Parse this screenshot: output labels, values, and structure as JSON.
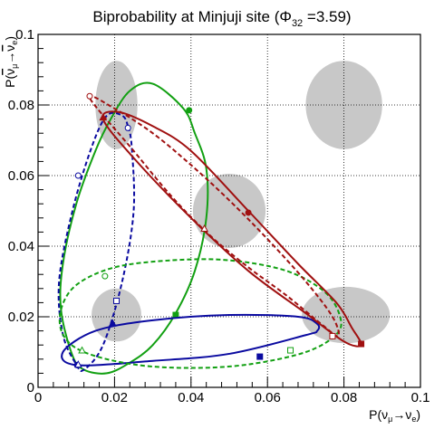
{
  "chart_data": {
    "type": "line",
    "title": {
      "prefix": "Biprobability at Minjuji site (",
      "symbol": "Φ",
      "subscript": "32",
      "suffix": " =3.59)"
    },
    "xlabel": {
      "base": "P(ν",
      "sub1": "μ",
      "arrow": "→ν",
      "sub2": "e",
      "close": ")"
    },
    "ylabel": {
      "base": "P(",
      "bar1": "ν",
      "sub1": "μ",
      "arrow": "→",
      "bar2": "ν",
      "sub2": "e",
      "close": ")"
    },
    "xlim": [
      0,
      0.1
    ],
    "ylim": [
      0,
      0.1
    ],
    "xticks": [
      "0",
      "0.02",
      "0.04",
      "0.06",
      "0.08",
      "0.1"
    ],
    "yticks": [
      "0",
      "0.02",
      "0.04",
      "0.06",
      "0.08",
      "0.1"
    ],
    "grid": true,
    "colors": {
      "green": "#12a012",
      "blue": "#0a0aa0",
      "red": "#a01010",
      "blob": "#c8c8c8"
    },
    "gray_regions": [
      {
        "cx": 0.0205,
        "cy": 0.08,
        "rx": 0.0055,
        "ry": 0.0125
      },
      {
        "cx": 0.08,
        "cy": 0.08,
        "rx": 0.01,
        "ry": 0.0125
      },
      {
        "cx": 0.05,
        "cy": 0.05,
        "rx": 0.0095,
        "ry": 0.0105
      },
      {
        "cx": 0.0205,
        "cy": 0.0205,
        "rx": 0.0065,
        "ry": 0.0075
      },
      {
        "cx": 0.0805,
        "cy": 0.0205,
        "rx": 0.0115,
        "ry": 0.008
      }
    ],
    "series": [
      {
        "color": "green",
        "dash": false,
        "points": [
          [
            0.038,
            0.079
          ],
          [
            0.03,
            0.086
          ],
          [
            0.024,
            0.084
          ],
          [
            0.019,
            0.076
          ],
          [
            0.015,
            0.067
          ],
          [
            0.01,
            0.052
          ],
          [
            0.0065,
            0.035
          ],
          [
            0.006,
            0.022
          ],
          [
            0.009,
            0.009
          ],
          [
            0.012,
            0.005
          ],
          [
            0.018,
            0.004
          ],
          [
            0.024,
            0.007
          ],
          [
            0.03,
            0.012
          ],
          [
            0.036,
            0.021
          ],
          [
            0.041,
            0.033
          ],
          [
            0.044,
            0.048
          ],
          [
            0.044,
            0.062
          ],
          [
            0.041,
            0.072
          ],
          [
            0.038,
            0.079
          ]
        ],
        "markers": [
          [
            0.0395,
            0.0785
          ],
          [
            0.036,
            0.0205
          ]
        ]
      },
      {
        "color": "blue",
        "dash": false,
        "points": [
          [
            0.0102,
            0.0063
          ],
          [
            0.03,
            0.0075
          ],
          [
            0.05,
            0.0095
          ],
          [
            0.07,
            0.0148
          ],
          [
            0.073,
            0.016
          ],
          [
            0.073,
            0.018
          ],
          [
            0.068,
            0.02
          ],
          [
            0.05,
            0.0205
          ],
          [
            0.03,
            0.019
          ],
          [
            0.015,
            0.016
          ],
          [
            0.0065,
            0.01
          ],
          [
            0.0102,
            0.0063
          ]
        ],
        "markers": [
          [
            0.0102,
            0.0063
          ],
          [
            0.058,
            0.0087
          ],
          [
            0.0195,
            0.0182
          ]
        ]
      },
      {
        "color": "blue",
        "dash": true,
        "points": [
          [
            0.0235,
            0.074
          ],
          [
            0.022,
            0.077
          ],
          [
            0.018,
            0.077
          ],
          [
            0.014,
            0.068
          ],
          [
            0.009,
            0.05
          ],
          [
            0.0055,
            0.03
          ],
          [
            0.0065,
            0.015
          ],
          [
            0.01,
            0.0065
          ],
          [
            0.012,
            0.005
          ],
          [
            0.017,
            0.012
          ],
          [
            0.022,
            0.03
          ],
          [
            0.025,
            0.05
          ],
          [
            0.0245,
            0.068
          ],
          [
            0.0235,
            0.074
          ]
        ],
        "markers": [
          [
            0.0235,
            0.0735
          ],
          [
            0.0205,
            0.0245
          ],
          [
            0.0105,
            0.0065
          ],
          [
            0.0105,
            0.06
          ]
        ]
      },
      {
        "color": "green",
        "dash": true,
        "points": [
          [
            0.006,
            0.022
          ],
          [
            0.01,
            0.029
          ],
          [
            0.02,
            0.034
          ],
          [
            0.035,
            0.036
          ],
          [
            0.05,
            0.036
          ],
          [
            0.065,
            0.033
          ],
          [
            0.075,
            0.027
          ],
          [
            0.079,
            0.02
          ],
          [
            0.078,
            0.015
          ],
          [
            0.07,
            0.01
          ],
          [
            0.055,
            0.0065
          ],
          [
            0.04,
            0.0055
          ],
          [
            0.025,
            0.0065
          ],
          [
            0.012,
            0.01
          ],
          [
            0.0065,
            0.015
          ],
          [
            0.006,
            0.022
          ]
        ],
        "markers": [
          [
            0.0175,
            0.0315
          ],
          [
            0.066,
            0.0105
          ],
          [
            0.0115,
            0.0105
          ],
          [
            0.077,
            0.0145
          ]
        ]
      },
      {
        "color": "red",
        "dash": false,
        "points": [
          [
            0.017,
            0.076
          ],
          [
            0.021,
            0.078
          ],
          [
            0.03,
            0.074
          ],
          [
            0.04,
            0.067
          ],
          [
            0.055,
            0.05
          ],
          [
            0.068,
            0.035
          ],
          [
            0.078,
            0.024
          ],
          [
            0.082,
            0.017
          ],
          [
            0.0845,
            0.012
          ],
          [
            0.08,
            0.013
          ],
          [
            0.07,
            0.021
          ],
          [
            0.055,
            0.033
          ],
          [
            0.04,
            0.048
          ],
          [
            0.025,
            0.065
          ],
          [
            0.017,
            0.076
          ]
        ],
        "markers": [
          [
            0.055,
            0.0495
          ],
          [
            0.0845,
            0.0123
          ],
          [
            0.017,
            0.0765
          ]
        ]
      },
      {
        "color": "red",
        "dash": true,
        "points": [
          [
            0.0135,
            0.082
          ],
          [
            0.02,
            0.079
          ],
          [
            0.03,
            0.072
          ],
          [
            0.04,
            0.063
          ],
          [
            0.05,
            0.053
          ],
          [
            0.06,
            0.042
          ],
          [
            0.07,
            0.03
          ],
          [
            0.077,
            0.02
          ],
          [
            0.0785,
            0.0145
          ],
          [
            0.074,
            0.018
          ],
          [
            0.065,
            0.026
          ],
          [
            0.055,
            0.034
          ],
          [
            0.045,
            0.043
          ],
          [
            0.035,
            0.054
          ],
          [
            0.025,
            0.067
          ],
          [
            0.0135,
            0.082
          ]
        ],
        "markers": [
          [
            0.0135,
            0.0825
          ],
          [
            0.077,
            0.0145
          ],
          [
            0.0435,
            0.045
          ]
        ]
      }
    ]
  }
}
